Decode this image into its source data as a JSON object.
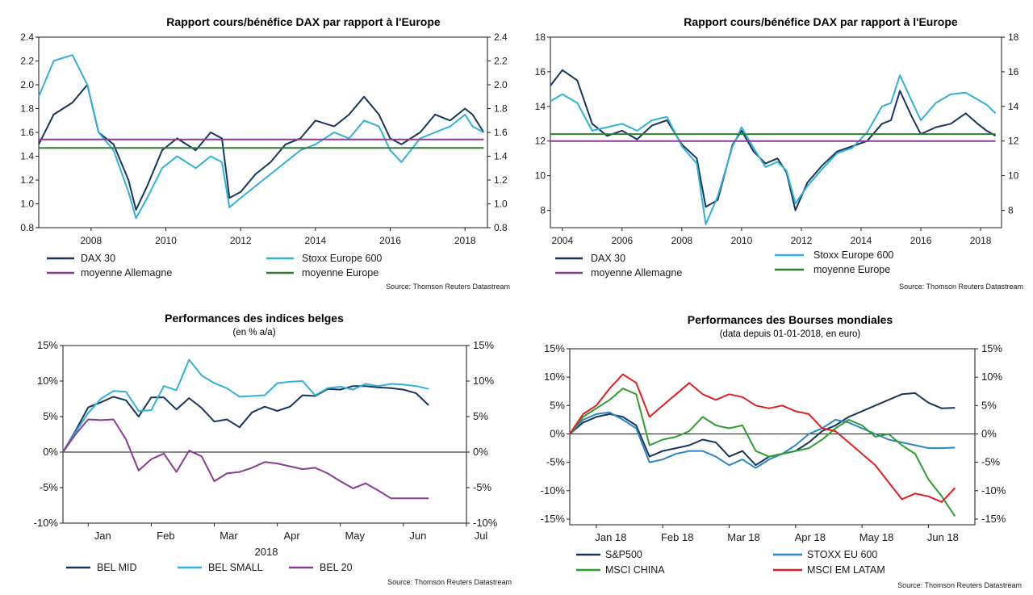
{
  "charts": [
    {
      "title": "Rapport cours/bénéfice DAX par rapport à l'Europe",
      "source": "Source: Thomson Reuters Datastream",
      "legend": [
        "DAX 30",
        "Stoxx Europe 600",
        "moyenne Allemagne",
        "moyenne Europe"
      ],
      "x_ticks": [
        "2008",
        "2010",
        "2012",
        "2014",
        "2016",
        "2018"
      ],
      "y_ticks": [
        "2.4",
        "2.2",
        "2.0",
        "1.8",
        "1.6",
        "1.4",
        "1.2",
        "1.0",
        "0.8"
      ]
    },
    {
      "title": "Rapport cours/bénéfice DAX par rapport à l'Europe",
      "source": "Source: Thomson Reuters Datastream",
      "legend": [
        "DAX 30",
        "Stoxx Europe 600",
        "moyenne Allemagne",
        "moyenne Europe"
      ],
      "x_ticks": [
        "2004",
        "2006",
        "2008",
        "2010",
        "2012",
        "2014",
        "2016",
        "2018"
      ],
      "y_ticks": [
        "18",
        "16",
        "14",
        "12",
        "10",
        "8"
      ]
    },
    {
      "title": "Performances des indices belges",
      "subtitle": "(en % a/a)",
      "source": "Source: Thomson Reuters Datastream",
      "legend": [
        "BEL MID",
        "BEL SMALL",
        "BEL 20"
      ],
      "x_ticks": [
        "Jan",
        "Feb",
        "Mar",
        "Apr",
        "May",
        "Jun",
        "Jul"
      ],
      "x_label": "2018",
      "y_ticks": [
        "15%",
        "10%",
        "5%",
        "0%",
        "-5%",
        "-10%"
      ]
    },
    {
      "title": "Performances des Bourses mondiales",
      "subtitle": "(data depuis 01-01-2018, en euro)",
      "source": "Source: Thomson Reuters Datastream",
      "legend": [
        "S&P500",
        "STOXX EU 600",
        "MSCI CHINA",
        "MSCI EM LATAM"
      ],
      "x_ticks": [
        "Jan 18",
        "Feb 18",
        "Mar 18",
        "Apr 18",
        "May 18",
        "Jun 18"
      ],
      "y_ticks": [
        "15%",
        "10%",
        "5%",
        "0%",
        "-5%",
        "-10%",
        "-15%"
      ]
    }
  ],
  "colors": {
    "dark_navy": "#17365d",
    "light_blue": "#31b0d8",
    "purple": "#8b3a96",
    "green": "#2e7d32",
    "steel_blue": "#2e86c1",
    "mid_green": "#2e9e2e",
    "red": "#e02020"
  },
  "chart_data": [
    {
      "type": "line",
      "title": "Rapport cours/bénéfice DAX par rapport à l'Europe",
      "ylim": [
        0.8,
        2.4
      ],
      "series": [
        {
          "name": "DAX 30",
          "x": [
            2006.6,
            2007.0,
            2007.5,
            2007.9,
            2008.2,
            2008.6,
            2009.0,
            2009.2,
            2009.5,
            2009.9,
            2010.3,
            2010.8,
            2011.2,
            2011.5,
            2011.7,
            2012.0,
            2012.4,
            2012.8,
            2013.2,
            2013.6,
            2014.0,
            2014.5,
            2014.9,
            2015.3,
            2015.7,
            2016.0,
            2016.3,
            2016.8,
            2017.2,
            2017.6,
            2018.0,
            2018.2,
            2018.5
          ],
          "values": [
            1.5,
            1.75,
            1.85,
            2.0,
            1.6,
            1.5,
            1.2,
            0.95,
            1.15,
            1.45,
            1.55,
            1.45,
            1.6,
            1.55,
            1.05,
            1.1,
            1.25,
            1.35,
            1.5,
            1.55,
            1.7,
            1.65,
            1.75,
            1.9,
            1.75,
            1.55,
            1.5,
            1.6,
            1.75,
            1.7,
            1.8,
            1.75,
            1.6
          ]
        },
        {
          "name": "Stoxx Europe 600",
          "x": [
            2006.6,
            2007.0,
            2007.5,
            2007.9,
            2008.2,
            2008.6,
            2009.0,
            2009.2,
            2009.5,
            2009.9,
            2010.3,
            2010.8,
            2011.2,
            2011.5,
            2011.7,
            2012.0,
            2012.4,
            2012.8,
            2013.2,
            2013.6,
            2014.0,
            2014.5,
            2014.9,
            2015.3,
            2015.7,
            2016.0,
            2016.3,
            2016.8,
            2017.2,
            2017.6,
            2018.0,
            2018.2,
            2018.5
          ],
          "values": [
            1.9,
            2.2,
            2.25,
            2.0,
            1.6,
            1.45,
            1.1,
            0.88,
            1.05,
            1.3,
            1.4,
            1.3,
            1.4,
            1.35,
            0.97,
            1.05,
            1.15,
            1.25,
            1.35,
            1.45,
            1.5,
            1.6,
            1.55,
            1.7,
            1.65,
            1.45,
            1.35,
            1.55,
            1.6,
            1.65,
            1.75,
            1.65,
            1.6
          ]
        },
        {
          "name": "moyenne Allemagne",
          "x": [
            2006.6,
            2018.5
          ],
          "values": [
            1.54,
            1.54
          ]
        },
        {
          "name": "moyenne Europe",
          "x": [
            2006.6,
            2018.5
          ],
          "values": [
            1.47,
            1.47
          ]
        }
      ]
    },
    {
      "type": "line",
      "title": "Rapport cours/bénéfice DAX par rapport à l'Europe",
      "ylim": [
        7,
        18
      ],
      "series": [
        {
          "name": "DAX 30",
          "x": [
            2003.6,
            2004.0,
            2004.5,
            2005.0,
            2005.5,
            2006.0,
            2006.5,
            2007.0,
            2007.5,
            2008.0,
            2008.5,
            2008.8,
            2009.2,
            2009.7,
            2010.0,
            2010.4,
            2010.8,
            2011.2,
            2011.5,
            2011.8,
            2012.2,
            2012.7,
            2013.2,
            2013.7,
            2014.2,
            2014.7,
            2015.0,
            2015.3,
            2015.7,
            2016.0,
            2016.5,
            2017.0,
            2017.5,
            2017.9,
            2018.2,
            2018.5
          ],
          "values": [
            15.2,
            16.1,
            15.5,
            13.0,
            12.3,
            12.6,
            12.1,
            12.9,
            13.2,
            11.8,
            11.0,
            8.2,
            8.6,
            11.8,
            12.6,
            11.4,
            10.7,
            11.0,
            10.2,
            8.0,
            9.6,
            10.6,
            11.4,
            11.7,
            12.0,
            13.0,
            13.2,
            14.9,
            13.4,
            12.4,
            12.8,
            13.0,
            13.6,
            13.0,
            12.6,
            12.3
          ]
        },
        {
          "name": "Stoxx Europe 600",
          "x": [
            2003.6,
            2004.0,
            2004.5,
            2005.0,
            2005.5,
            2006.0,
            2006.5,
            2007.0,
            2007.5,
            2008.0,
            2008.5,
            2008.8,
            2009.2,
            2009.7,
            2010.0,
            2010.4,
            2010.8,
            2011.2,
            2011.5,
            2011.8,
            2012.2,
            2012.7,
            2013.2,
            2013.7,
            2014.2,
            2014.7,
            2015.0,
            2015.3,
            2015.7,
            2016.0,
            2016.5,
            2017.0,
            2017.5,
            2017.9,
            2018.2,
            2018.5
          ],
          "values": [
            14.3,
            14.7,
            14.2,
            12.6,
            12.8,
            13.0,
            12.6,
            13.2,
            13.4,
            11.7,
            10.7,
            7.2,
            8.8,
            11.7,
            12.8,
            11.6,
            10.5,
            10.8,
            10.3,
            8.4,
            9.4,
            10.4,
            11.3,
            11.6,
            12.5,
            14.0,
            14.2,
            15.8,
            14.3,
            13.2,
            14.2,
            14.7,
            14.8,
            14.4,
            14.1,
            13.6
          ]
        },
        {
          "name": "moyenne Allemagne",
          "x": [
            2003.6,
            2018.5
          ],
          "values": [
            12.0,
            12.0
          ]
        },
        {
          "name": "moyenne Europe",
          "x": [
            2003.6,
            2018.5
          ],
          "values": [
            12.4,
            12.4
          ]
        }
      ]
    },
    {
      "type": "line",
      "title": "Performances des indices belges",
      "xlabel": "2018",
      "ylim": [
        -10,
        15
      ],
      "x_unit": "month index (1 = Jan)",
      "series": [
        {
          "name": "BEL MID",
          "x": [
            0.6,
            0.8,
            1.0,
            1.2,
            1.4,
            1.6,
            1.8,
            2.0,
            2.2,
            2.4,
            2.6,
            2.8,
            3.0,
            3.2,
            3.4,
            3.6,
            3.8,
            4.0,
            4.2,
            4.4,
            4.6,
            4.8,
            5.0,
            5.2,
            5.4,
            5.6,
            5.8,
            6.0,
            6.2,
            6.4
          ],
          "values": [
            0.0,
            3.0,
            6.3,
            7.0,
            7.8,
            7.3,
            5.0,
            7.7,
            7.7,
            6.0,
            7.6,
            6.2,
            4.3,
            4.6,
            3.5,
            5.6,
            6.4,
            5.8,
            6.4,
            8.0,
            7.9,
            8.9,
            8.8,
            9.3,
            9.3,
            9.1,
            9.0,
            8.8,
            8.3,
            6.6
          ]
        },
        {
          "name": "BEL SMALL",
          "x": [
            0.6,
            0.8,
            1.0,
            1.2,
            1.4,
            1.6,
            1.8,
            2.0,
            2.2,
            2.4,
            2.6,
            2.8,
            3.0,
            3.2,
            3.4,
            3.6,
            3.8,
            4.0,
            4.2,
            4.4,
            4.6,
            4.8,
            5.0,
            5.2,
            5.4,
            5.6,
            5.8,
            6.0,
            6.2,
            6.4
          ],
          "values": [
            0.0,
            2.8,
            5.5,
            7.5,
            8.6,
            8.5,
            5.8,
            5.9,
            9.3,
            8.7,
            13.0,
            10.8,
            9.7,
            9.0,
            7.8,
            7.9,
            8.0,
            9.7,
            9.9,
            10.0,
            8.0,
            9.0,
            9.2,
            8.8,
            9.6,
            9.3,
            9.6,
            9.5,
            9.3,
            8.9
          ]
        },
        {
          "name": "BEL 20",
          "x": [
            0.6,
            0.8,
            1.0,
            1.2,
            1.4,
            1.6,
            1.8,
            2.0,
            2.2,
            2.4,
            2.6,
            2.8,
            3.0,
            3.2,
            3.4,
            3.6,
            3.8,
            4.0,
            4.2,
            4.4,
            4.6,
            4.8,
            5.0,
            5.2,
            5.4,
            5.6,
            5.8,
            6.0,
            6.2,
            6.4
          ],
          "values": [
            0.0,
            2.5,
            4.6,
            4.5,
            4.6,
            1.8,
            -2.6,
            -1.0,
            -0.2,
            -2.8,
            0.2,
            -0.6,
            -4.1,
            -3.0,
            -2.8,
            -2.2,
            -1.4,
            -1.6,
            -2.0,
            -2.4,
            -2.2,
            -3.0,
            -4.1,
            -5.1,
            -4.4,
            -5.4,
            -6.5,
            -6.5,
            -6.5,
            -6.5
          ]
        }
      ]
    },
    {
      "type": "line",
      "title": "Performances des Bourses mondiales",
      "ylim": [
        -15,
        15
      ],
      "x_unit": "month index (1 = Jan 18)",
      "series": [
        {
          "name": "S&P500",
          "x": [
            0.6,
            0.8,
            1.0,
            1.2,
            1.4,
            1.6,
            1.8,
            2.0,
            2.2,
            2.4,
            2.6,
            2.8,
            3.0,
            3.2,
            3.4,
            3.6,
            3.8,
            4.0,
            4.2,
            4.4,
            4.6,
            4.8,
            5.0,
            5.2,
            5.4,
            5.6,
            5.8,
            6.0,
            6.2,
            6.4
          ],
          "values": [
            0.0,
            2.0,
            3.0,
            3.5,
            3.0,
            1.5,
            -4.0,
            -3.0,
            -2.5,
            -2.0,
            -1.0,
            -1.5,
            -4.0,
            -3.0,
            -5.5,
            -4.0,
            -3.5,
            -3.0,
            -1.5,
            0.5,
            1.5,
            3.0,
            4.0,
            5.0,
            6.0,
            7.0,
            7.2,
            5.5,
            4.5,
            4.6
          ]
        },
        {
          "name": "STOXX EU 600",
          "x": [
            0.6,
            0.8,
            1.0,
            1.2,
            1.4,
            1.6,
            1.8,
            2.0,
            2.2,
            2.4,
            2.6,
            2.8,
            3.0,
            3.2,
            3.4,
            3.6,
            3.8,
            4.0,
            4.2,
            4.4,
            4.6,
            4.8,
            5.0,
            5.2,
            5.4,
            5.6,
            5.8,
            6.0,
            6.2,
            6.4
          ],
          "values": [
            0.0,
            2.5,
            3.5,
            3.8,
            2.5,
            1.0,
            -5.0,
            -4.5,
            -3.5,
            -3.0,
            -3.0,
            -4.0,
            -5.5,
            -4.5,
            -6.0,
            -4.5,
            -3.5,
            -2.0,
            0.0,
            1.0,
            2.5,
            2.0,
            1.0,
            0.0,
            -1.0,
            -1.5,
            -2.0,
            -2.5,
            -2.5,
            -2.4
          ]
        },
        {
          "name": "MSCI CHINA",
          "x": [
            0.6,
            0.8,
            1.0,
            1.2,
            1.4,
            1.6,
            1.8,
            2.0,
            2.2,
            2.4,
            2.6,
            2.8,
            3.0,
            3.2,
            3.4,
            3.6,
            3.8,
            4.0,
            4.2,
            4.4,
            4.6,
            4.8,
            5.0,
            5.2,
            5.4,
            5.6,
            5.8,
            6.0,
            6.2,
            6.4
          ],
          "values": [
            0.0,
            3.0,
            4.5,
            6.0,
            8.0,
            7.0,
            -2.0,
            -1.0,
            -0.5,
            0.5,
            3.0,
            1.5,
            1.0,
            1.5,
            -3.0,
            -4.0,
            -3.5,
            -3.0,
            -2.5,
            -1.0,
            1.0,
            2.5,
            1.5,
            -0.5,
            0.0,
            -2.0,
            -3.5,
            -8.0,
            -11.0,
            -14.5
          ]
        },
        {
          "name": "MSCI EM LATAM",
          "x": [
            0.6,
            0.8,
            1.0,
            1.2,
            1.4,
            1.6,
            1.8,
            2.0,
            2.2,
            2.4,
            2.6,
            2.8,
            3.0,
            3.2,
            3.4,
            3.6,
            3.8,
            4.0,
            4.2,
            4.4,
            4.6,
            4.8,
            5.0,
            5.2,
            5.4,
            5.6,
            5.8,
            6.0,
            6.2,
            6.4
          ],
          "values": [
            0.0,
            3.5,
            5.0,
            8.0,
            10.5,
            9.0,
            3.0,
            5.0,
            7.0,
            9.0,
            7.0,
            6.0,
            7.0,
            6.5,
            5.0,
            4.5,
            5.0,
            4.0,
            3.5,
            1.0,
            0.5,
            -1.5,
            -3.5,
            -5.5,
            -8.5,
            -11.5,
            -10.5,
            -11.0,
            -12.0,
            -9.5
          ]
        }
      ]
    }
  ]
}
